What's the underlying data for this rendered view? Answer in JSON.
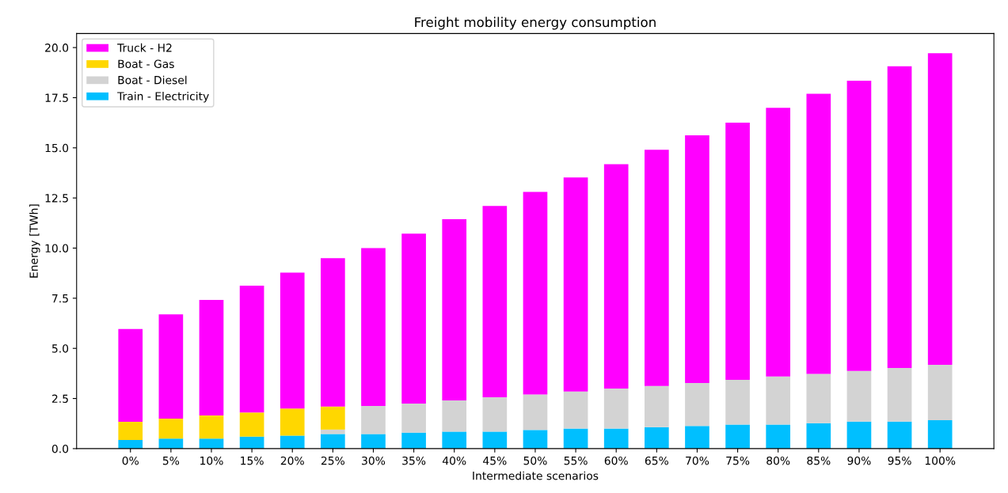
{
  "chart_data": {
    "type": "bar",
    "title": "Freight mobility energy consumption",
    "xlabel": "Intermediate scenarios",
    "ylabel": "Energy [TWh]",
    "categories": [
      "0%",
      "5%",
      "10%",
      "15%",
      "20%",
      "25%",
      "30%",
      "35%",
      "40%",
      "45%",
      "50%",
      "55%",
      "60%",
      "65%",
      "70%",
      "75%",
      "80%",
      "85%",
      "90%",
      "95%",
      "100%"
    ],
    "stacked": true,
    "series": [
      {
        "name": "Train - Electricity",
        "color": "#00bfff",
        "values": [
          0.43,
          0.5,
          0.5,
          0.6,
          0.65,
          0.73,
          0.73,
          0.8,
          0.85,
          0.85,
          0.93,
          1.0,
          1.0,
          1.07,
          1.13,
          1.2,
          1.2,
          1.27,
          1.35,
          1.35,
          1.42
        ]
      },
      {
        "name": "Boat - Diesel",
        "color": "#d3d3d3",
        "values": [
          0,
          0,
          0,
          0,
          0,
          0.22,
          1.4,
          1.45,
          1.55,
          1.71,
          1.77,
          1.85,
          2.0,
          2.05,
          2.14,
          2.23,
          2.4,
          2.46,
          2.52,
          2.67,
          2.76
        ]
      },
      {
        "name": "Boat - Gas",
        "color": "#ffd700",
        "values": [
          0.91,
          1.0,
          1.15,
          1.2,
          1.35,
          1.15,
          0,
          0,
          0,
          0,
          0,
          0,
          0,
          0,
          0,
          0,
          0,
          0,
          0,
          0,
          0
        ]
      },
      {
        "name": "Truck - H2",
        "color": "#ff00ff",
        "values": [
          4.63,
          5.2,
          5.77,
          6.33,
          6.78,
          7.4,
          7.87,
          8.47,
          9.04,
          9.54,
          10.1,
          10.67,
          11.18,
          11.78,
          12.35,
          12.83,
          13.4,
          13.97,
          14.48,
          15.05,
          15.54
        ]
      }
    ],
    "ylim": [
      0,
      20.7
    ],
    "yticks": [
      {
        "value": 0,
        "label": "0.0"
      },
      {
        "value": 2.5,
        "label": "2.5"
      },
      {
        "value": 5,
        "label": "5.0"
      },
      {
        "value": 7.5,
        "label": "7.5"
      },
      {
        "value": 10,
        "label": "10.0"
      },
      {
        "value": 12.5,
        "label": "12.5"
      },
      {
        "value": 15,
        "label": "15.0"
      },
      {
        "value": 17.5,
        "label": "17.5"
      },
      {
        "value": 20,
        "label": "20.0"
      }
    ],
    "legend": "upper left",
    "grid": false
  }
}
